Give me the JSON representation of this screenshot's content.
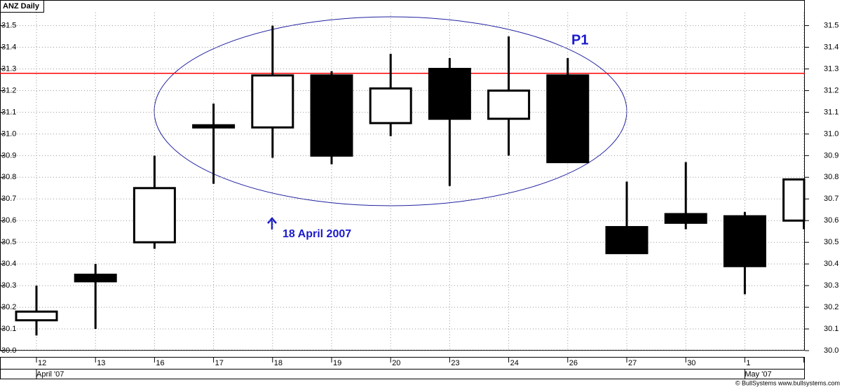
{
  "chart_data": {
    "type": "candlestick",
    "title": "ANZ  Daily",
    "categories": [
      "12",
      "13",
      "16",
      "17",
      "18",
      "19",
      "20",
      "23",
      "24",
      "26",
      "27",
      "30",
      "1",
      null
    ],
    "open": [
      30.14,
      30.35,
      30.5,
      31.04,
      31.03,
      31.27,
      31.05,
      31.3,
      31.07,
      31.27,
      30.57,
      30.63,
      30.62,
      30.6
    ],
    "high": [
      30.3,
      30.4,
      30.9,
      31.14,
      31.5,
      31.29,
      31.37,
      31.35,
      31.45,
      31.35,
      30.78,
      30.87,
      30.64,
      30.79
    ],
    "low": [
      30.07,
      30.1,
      30.47,
      30.77,
      30.89,
      30.86,
      30.99,
      30.76,
      30.9,
      30.87,
      30.45,
      30.56,
      30.26,
      30.56
    ],
    "close": [
      30.18,
      30.32,
      30.75,
      31.03,
      31.27,
      30.9,
      31.21,
      31.07,
      31.2,
      30.87,
      30.45,
      30.59,
      30.39,
      30.79
    ],
    "up_color": "#ffffff",
    "down_color": "#000000",
    "ylim": [
      30.0,
      31.56
    ],
    "yticks": [
      {
        "value": 30.0,
        "label": "30.0"
      },
      30.1,
      30.2,
      30.3,
      30.4,
      30.5,
      30.6,
      30.7,
      30.8,
      30.9,
      {
        "value": 31.0,
        "label": "31.0"
      },
      31.1,
      31.2,
      31.3,
      31.4,
      31.5
    ],
    "grid": true,
    "reference_line": {
      "value": 31.28,
      "color": "#ff0000"
    },
    "months": [
      "April '07",
      "May '07"
    ],
    "annotations": [
      "P1",
      "18 April 2007"
    ],
    "footer": "© BullSystems www.bullsystems.com"
  }
}
